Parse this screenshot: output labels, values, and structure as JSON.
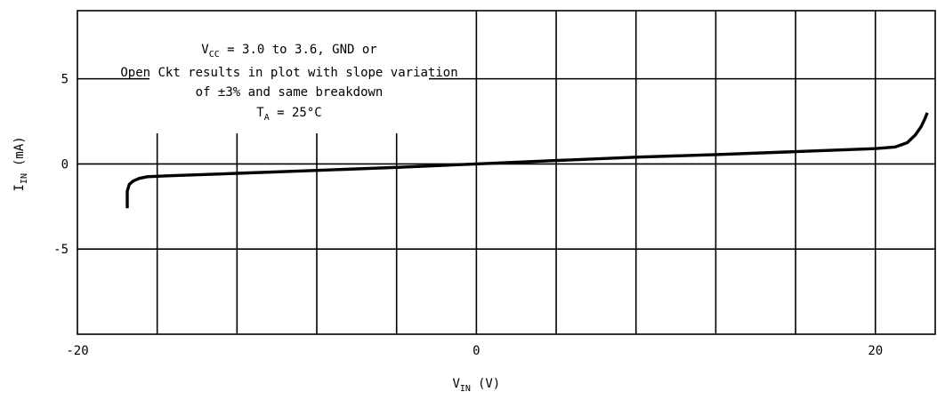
{
  "chart_data": {
    "type": "line",
    "xlabel": {
      "main": "V",
      "sub": "IN",
      "unit": "(V)"
    },
    "ylabel": {
      "main": "I",
      "sub": "IN",
      "unit": "(mA)"
    },
    "xlim": [
      -20,
      23
    ],
    "ylim": [
      -10,
      9
    ],
    "x_gridlines": [
      -16,
      -12,
      -8,
      -4,
      0,
      4,
      8,
      12,
      16,
      20
    ],
    "y_gridlines": [
      -5,
      0,
      5
    ],
    "x_ticks": [
      {
        "value": -20,
        "label": "-20"
      },
      {
        "value": 0,
        "label": "0"
      },
      {
        "value": 20,
        "label": "20"
      }
    ],
    "y_ticks": [
      {
        "value": 5,
        "label": "5"
      },
      {
        "value": 0,
        "label": "0"
      },
      {
        "value": -5,
        "label": "-5"
      }
    ],
    "grid": true,
    "annotation": {
      "line1": {
        "pre": "V",
        "sub": "CC",
        "post": " = 3.0 to 3.6, GND or"
      },
      "line2": "Open Ckt results in plot with slope variation",
      "line3": "of ±3% and same breakdown",
      "line4": {
        "pre": "T",
        "sub": "A",
        "post": " = 25°C"
      }
    },
    "series": [
      {
        "x": [
          -17.5,
          -17.5,
          -17.4,
          -17.2,
          -16.9,
          -16.5,
          -15.5,
          -12,
          -8,
          -4,
          0,
          4,
          8,
          12,
          16,
          20,
          21.0,
          21.6,
          22.0,
          22.3,
          22.5,
          22.6
        ],
        "y": [
          -2.6,
          -1.6,
          -1.2,
          -1.0,
          -0.85,
          -0.75,
          -0.7,
          -0.55,
          -0.38,
          -0.2,
          0.0,
          0.2,
          0.4,
          0.55,
          0.72,
          0.9,
          1.0,
          1.25,
          1.7,
          2.2,
          2.7,
          3.0
        ]
      }
    ]
  }
}
